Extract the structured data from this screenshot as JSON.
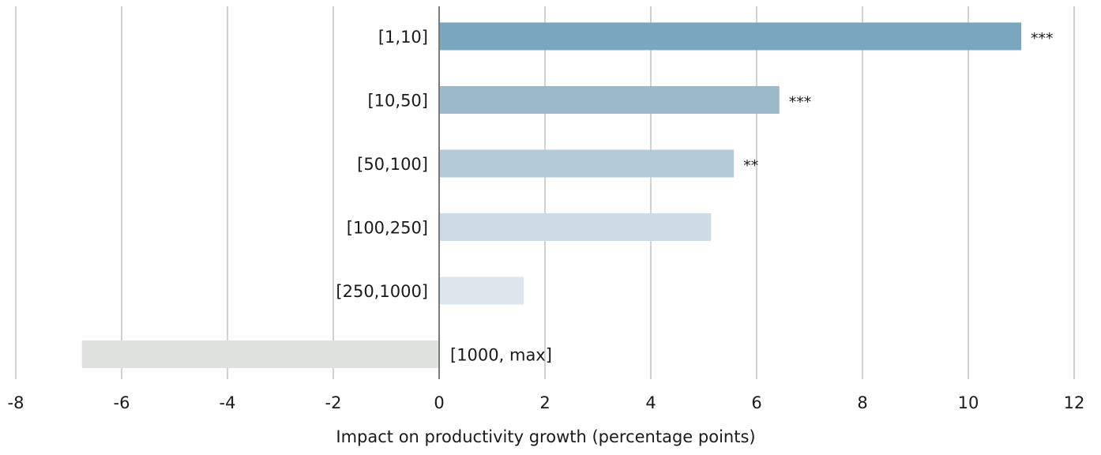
{
  "chart_data": {
    "type": "bar",
    "orientation": "horizontal",
    "title": "",
    "xlabel": "Impact on productivity growth (percentage points)",
    "ylabel": "",
    "xlim": [
      -8,
      12
    ],
    "xticks": [
      -8,
      -6,
      -4,
      -2,
      0,
      2,
      4,
      6,
      8,
      10,
      12
    ],
    "grid": "vertical",
    "legend": "none",
    "categories": [
      "[1,10]",
      "[10,50]",
      "[50,100]",
      "[100,250]",
      "[250,1000]",
      "[1000, max]"
    ],
    "values": [
      11.0,
      6.43,
      5.57,
      5.14,
      1.6,
      -6.75
    ],
    "significance": [
      "***",
      "***",
      "**",
      "",
      "",
      ""
    ],
    "colors": [
      "#7aa7bf",
      "#9ab9cb",
      "#b3cad7",
      "#ccdbe4",
      "#dde7ed",
      "#dfe2df"
    ],
    "zero_line_color": "#7a7a7a",
    "grid_color": "#c4c4c4"
  }
}
